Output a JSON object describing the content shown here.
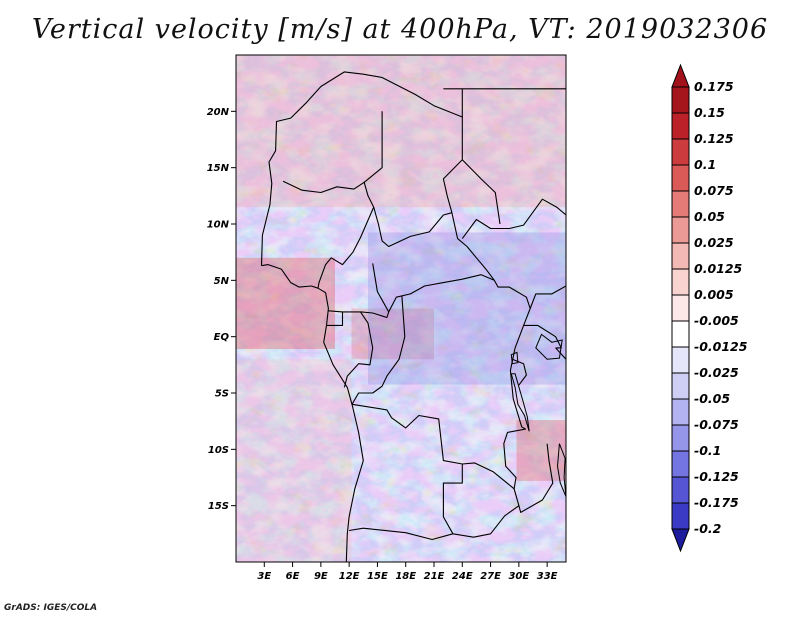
{
  "title": "Vertical velocity [m/s] at 400hPa, VT: 2019032306",
  "credit": "GrADS: IGES/COLA",
  "map": {
    "lat_range": [
      -20,
      25
    ],
    "lon_range": [
      0,
      35
    ],
    "lat_ticks": [
      {
        "value": 20,
        "label": "20N"
      },
      {
        "value": 15,
        "label": "15N"
      },
      {
        "value": 10,
        "label": "10N"
      },
      {
        "value": 5,
        "label": "5N"
      },
      {
        "value": 0,
        "label": "EQ"
      },
      {
        "value": -5,
        "label": "5S"
      },
      {
        "value": -10,
        "label": "10S"
      },
      {
        "value": -15,
        "label": "15S"
      }
    ],
    "lon_ticks": [
      {
        "value": 3,
        "label": "3E"
      },
      {
        "value": 6,
        "label": "6E"
      },
      {
        "value": 9,
        "label": "9E"
      },
      {
        "value": 12,
        "label": "12E"
      },
      {
        "value": 15,
        "label": "15E"
      },
      {
        "value": 18,
        "label": "18E"
      },
      {
        "value": 21,
        "label": "21E"
      },
      {
        "value": 24,
        "label": "24E"
      },
      {
        "value": 27,
        "label": "27E"
      },
      {
        "value": 30,
        "label": "30E"
      },
      {
        "value": 33,
        "label": "33E"
      }
    ]
  },
  "colorbar": {
    "levels": [
      {
        "label": "0.175",
        "color": "#a5161c"
      },
      {
        "label": "0.15",
        "color": "#bb2129"
      },
      {
        "label": "0.125",
        "color": "#cc3b3d"
      },
      {
        "label": "0.1",
        "color": "#da5a57"
      },
      {
        "label": "0.075",
        "color": "#e47b76"
      },
      {
        "label": "0.05",
        "color": "#ec9a96"
      },
      {
        "label": "0.025",
        "color": "#f3b9b5"
      },
      {
        "label": "0.0125",
        "color": "#f8d3d0"
      },
      {
        "label": "0.005",
        "color": "#fce9e7"
      },
      {
        "label": "-0.005",
        "color": "#ffffff"
      },
      {
        "label": "-0.0125",
        "color": "#e6e6fb"
      },
      {
        "label": "-0.025",
        "color": "#cfcff6"
      },
      {
        "label": "-0.05",
        "color": "#b3b3f1"
      },
      {
        "label": "-0.075",
        "color": "#9595ea"
      },
      {
        "label": "-0.1",
        "color": "#7575e1"
      },
      {
        "label": "-0.125",
        "color": "#5656d5"
      },
      {
        "label": "-0.175",
        "color": "#3a3ac4"
      },
      {
        "label": "-0.2",
        "color": "#2424ad"
      }
    ],
    "top_color": "#a1121a",
    "bottom_color": "#1c1c9c"
  }
}
